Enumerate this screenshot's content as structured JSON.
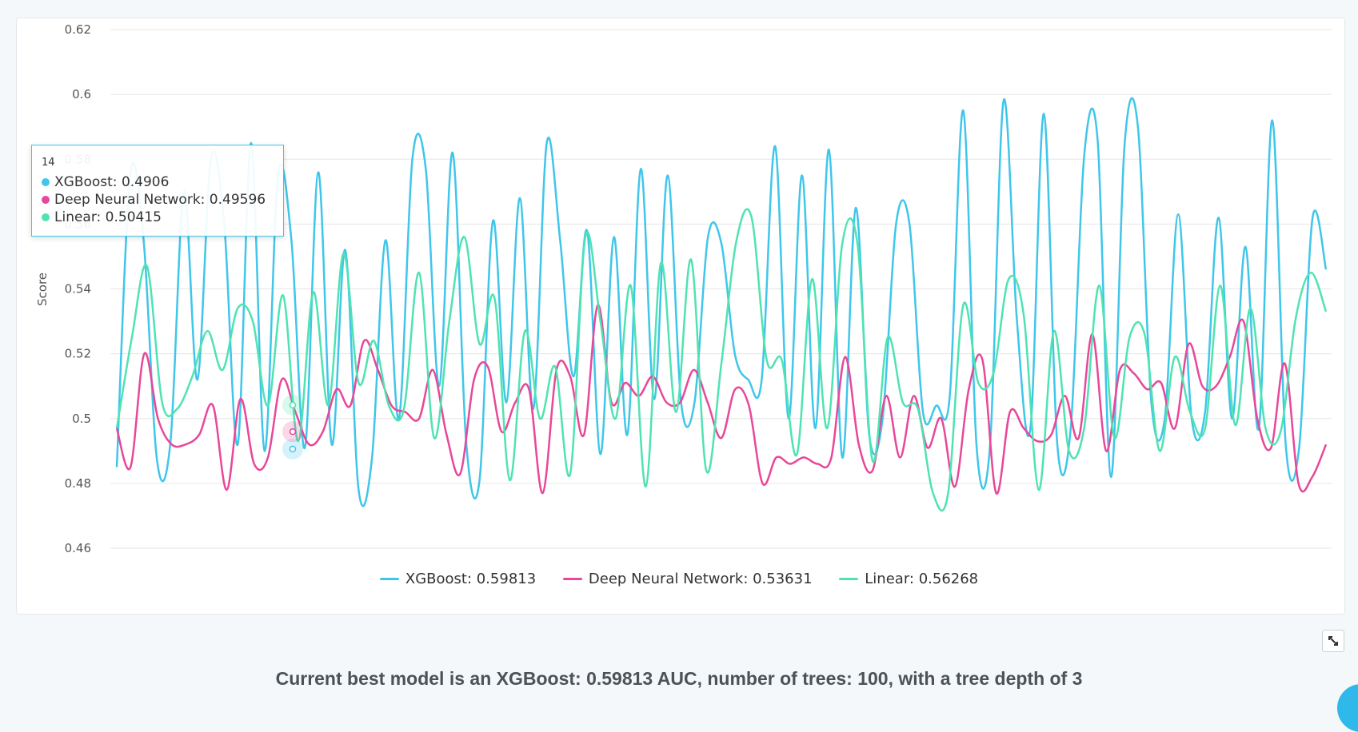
{
  "chart_data": {
    "type": "line",
    "ylabel": "Score",
    "xlabel": "",
    "ylim": [
      0.46,
      0.62
    ],
    "yticks": [
      0.46,
      0.48,
      0.5,
      0.52,
      0.54,
      0.56,
      0.58,
      0.6,
      0.62
    ],
    "grid": true,
    "legend_position": "bottom",
    "x_count": 100,
    "series": [
      {
        "name": "XGBoost",
        "color": "#3fc6ea",
        "values": [
          0.485,
          0.575,
          0.555,
          0.487,
          0.493,
          0.57,
          0.512,
          0.58,
          0.56,
          0.492,
          0.585,
          0.49,
          0.575,
          0.555,
          0.491,
          0.576,
          0.492,
          0.552,
          0.478,
          0.488,
          0.555,
          0.5,
          0.58,
          0.577,
          0.51,
          0.582,
          0.493,
          0.481,
          0.561,
          0.505,
          0.568,
          0.503,
          0.585,
          0.555,
          0.513,
          0.558,
          0.489,
          0.556,
          0.495,
          0.577,
          0.506,
          0.575,
          0.505,
          0.505,
          0.556,
          0.554,
          0.52,
          0.512,
          0.512,
          0.584,
          0.5,
          0.575,
          0.497,
          0.583,
          0.488,
          0.565,
          0.495,
          0.5,
          0.56,
          0.56,
          0.502,
          0.504,
          0.507,
          0.595,
          0.491,
          0.492,
          0.598,
          0.53,
          0.497,
          0.594,
          0.492,
          0.497,
          0.581,
          0.586,
          0.482,
          0.584,
          0.59,
          0.505,
          0.5,
          0.563,
          0.5,
          0.502,
          0.562,
          0.5,
          0.553,
          0.497,
          0.592,
          0.492,
          0.491,
          0.562,
          0.546
        ]
      },
      {
        "name": "Deep Neural Network",
        "color": "#e8479a",
        "values": [
          0.497,
          0.485,
          0.52,
          0.5,
          0.492,
          0.492,
          0.495,
          0.504,
          0.478,
          0.506,
          0.486,
          0.488,
          0.512,
          0.502,
          0.492,
          0.49596,
          0.509,
          0.504,
          0.524,
          0.515,
          0.504,
          0.502,
          0.5,
          0.515,
          0.495,
          0.483,
          0.512,
          0.516,
          0.496,
          0.505,
          0.509,
          0.477,
          0.515,
          0.513,
          0.495,
          0.535,
          0.505,
          0.511,
          0.507,
          0.513,
          0.505,
          0.505,
          0.515,
          0.505,
          0.494,
          0.509,
          0.504,
          0.48,
          0.488,
          0.486,
          0.488,
          0.486,
          0.488,
          0.519,
          0.492,
          0.484,
          0.507,
          0.488,
          0.507,
          0.491,
          0.5,
          0.479,
          0.509,
          0.518,
          0.477,
          0.502,
          0.497,
          0.493,
          0.495,
          0.507,
          0.494,
          0.526,
          0.49,
          0.515,
          0.514,
          0.509,
          0.511,
          0.497,
          0.523,
          0.51,
          0.51,
          0.519,
          0.53,
          0.5,
          0.491,
          0.517,
          0.48,
          0.482,
          0.492
        ]
      },
      {
        "name": "Linear",
        "color": "#4fe3b2",
        "values": [
          0.497,
          0.525,
          0.547,
          0.505,
          0.503,
          0.513,
          0.527,
          0.515,
          0.534,
          0.53,
          0.504,
          0.538,
          0.493,
          0.539,
          0.50415,
          0.551,
          0.511,
          0.524,
          0.504,
          0.503,
          0.545,
          0.494,
          0.53,
          0.556,
          0.523,
          0.537,
          0.481,
          0.527,
          0.5,
          0.516,
          0.483,
          0.556,
          0.53,
          0.5,
          0.541,
          0.479,
          0.548,
          0.502,
          0.549,
          0.484,
          0.517,
          0.555,
          0.562,
          0.518,
          0.518,
          0.489,
          0.543,
          0.497,
          0.554,
          0.554,
          0.487,
          0.525,
          0.505,
          0.503,
          0.477,
          0.477,
          0.535,
          0.511,
          0.514,
          0.543,
          0.532,
          0.478,
          0.527,
          0.49,
          0.497,
          0.541,
          0.494,
          0.525,
          0.526,
          0.49,
          0.519,
          0.502,
          0.497,
          0.541,
          0.498,
          0.534,
          0.497,
          0.496,
          0.531,
          0.545,
          0.533
        ]
      }
    ],
    "legend": [
      {
        "label": "XGBoost: 0.59813",
        "color": "#3fc6ea"
      },
      {
        "label": "Deep Neural Network: 0.53631",
        "color": "#e8479a"
      },
      {
        "label": "Linear: 0.56268",
        "color": "#4fe3b2"
      }
    ],
    "tooltip": {
      "header": "14",
      "rows": [
        {
          "label": "XGBoost: 0.4906",
          "color": "#3fc6ea"
        },
        {
          "label": "Deep Neural Network: 0.49596",
          "color": "#e8479a"
        },
        {
          "label": "Linear: 0.50415",
          "color": "#4fe3b2"
        }
      ]
    }
  },
  "summary": "Current best model is an XGBoost: 0.59813 AUC, number of trees: 100, with a tree depth of 3",
  "icons": {
    "expand": "expand-icon"
  }
}
